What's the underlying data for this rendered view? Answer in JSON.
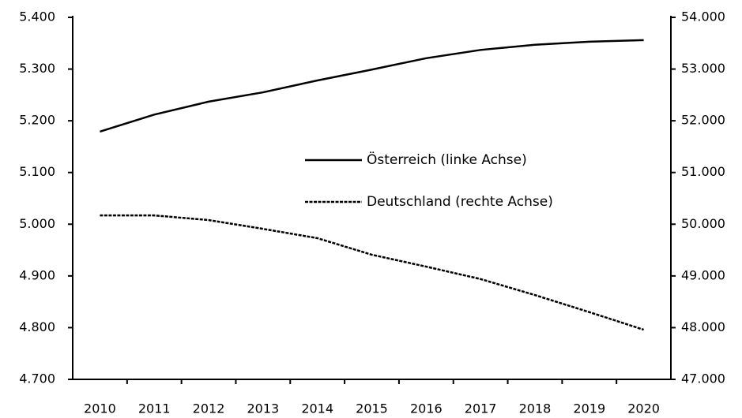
{
  "chart_data": {
    "type": "line",
    "categories": [
      "2010",
      "2011",
      "2012",
      "2013",
      "2014",
      "2015",
      "2016",
      "2017",
      "2018",
      "2019",
      "2020"
    ],
    "series": [
      {
        "name": "Österreich (linke Achse)",
        "color": "#000000",
        "style": "solid",
        "axis": "y",
        "values": [
          5179,
          5212,
          5237,
          5255,
          5278,
          5299,
          5321,
          5337,
          5347,
          5353,
          5356
        ]
      },
      {
        "name": "Deutschland (rechte Achse)",
        "color": "#000000",
        "style": "dashed",
        "axis": "y2",
        "values": [
          50170,
          50170,
          50080,
          49910,
          49730,
          49410,
          49180,
          48940,
          48630,
          48300,
          47960
        ]
      }
    ],
    "ylim": [
      4700,
      5400
    ],
    "yticks": [
      {
        "value": 4700,
        "label": "4.700"
      },
      {
        "value": 4800,
        "label": "4.800"
      },
      {
        "value": 4900,
        "label": "4.900"
      },
      {
        "value": 5000,
        "label": "5.000"
      },
      {
        "value": 5100,
        "label": "5.100"
      },
      {
        "value": 5200,
        "label": "5.200"
      },
      {
        "value": 5300,
        "label": "5.300"
      },
      {
        "value": 5400,
        "label": "5.400"
      }
    ],
    "y2lim": [
      47000,
      54000
    ],
    "y2ticks": [
      {
        "value": 47000,
        "label": "47.000"
      },
      {
        "value": 48000,
        "label": "48.000"
      },
      {
        "value": 49000,
        "label": "49.000"
      },
      {
        "value": 50000,
        "label": "50.000"
      },
      {
        "value": 51000,
        "label": "51.000"
      },
      {
        "value": 52000,
        "label": "52.000"
      },
      {
        "value": 53000,
        "label": "53.000"
      },
      {
        "value": 54000,
        "label": "54.000"
      }
    ],
    "grid": false,
    "legend": "center"
  }
}
